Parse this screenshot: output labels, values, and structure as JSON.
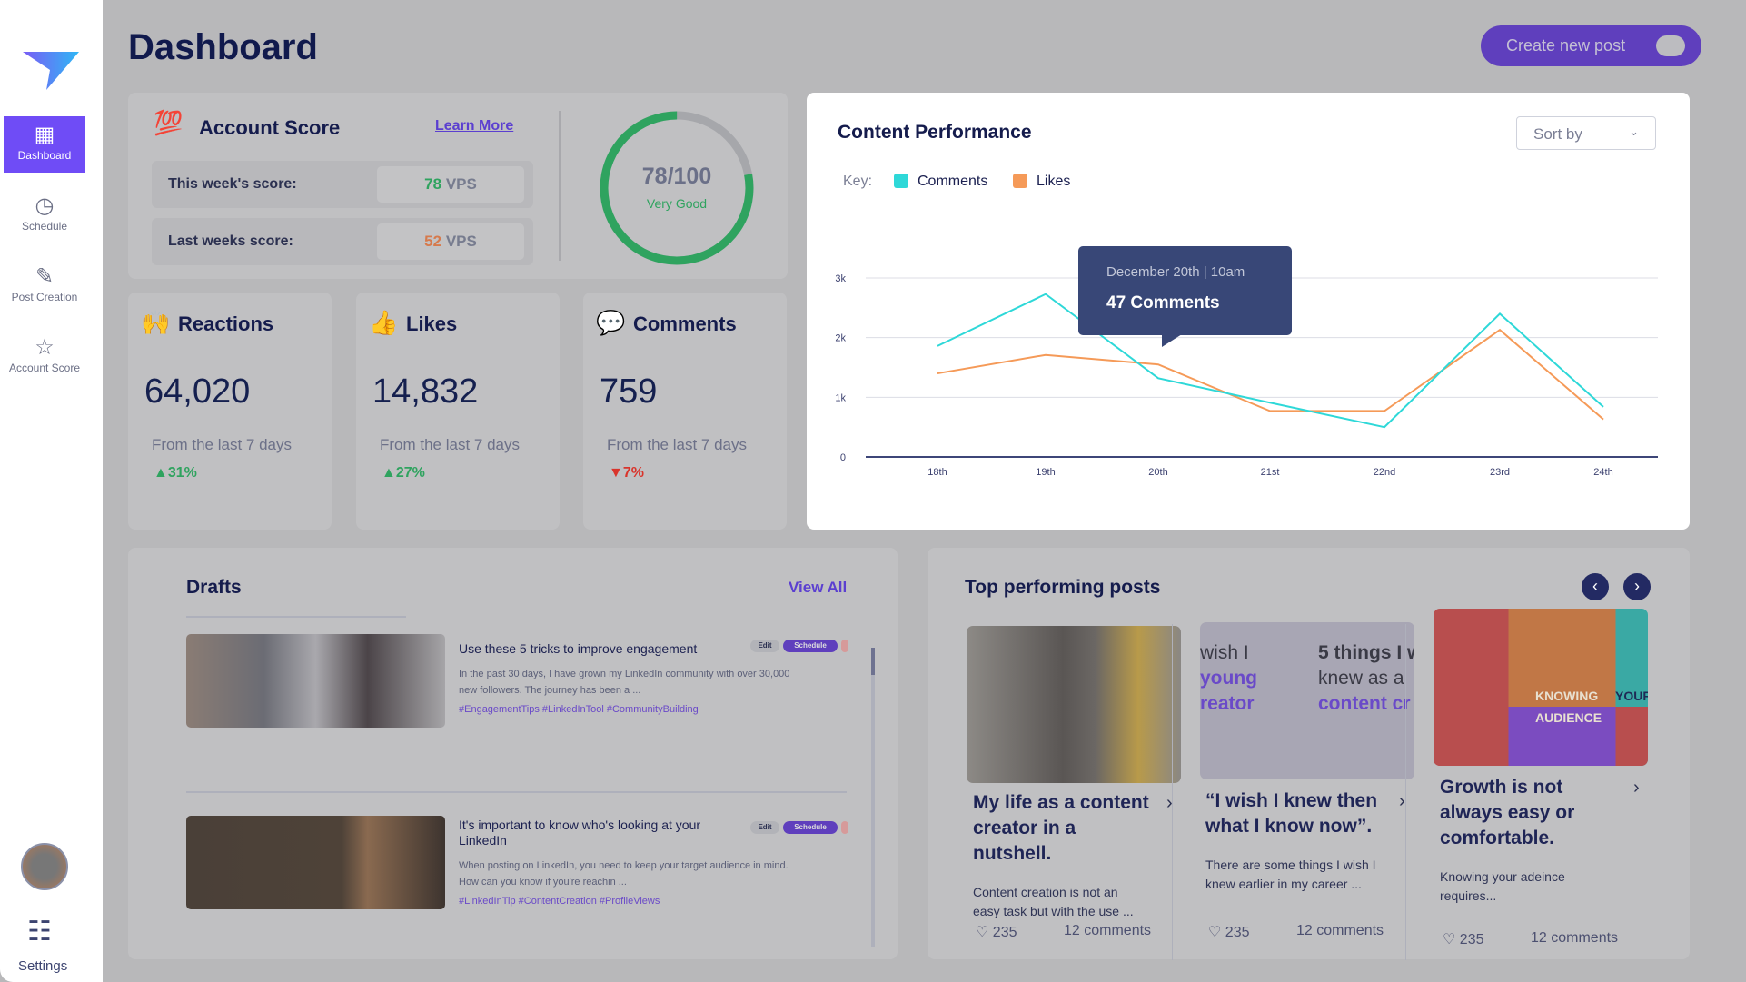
{
  "header": {
    "title": "Dashboard",
    "create_label": "Create new post"
  },
  "sidebar": {
    "items": [
      {
        "label": "Dashboard",
        "icon": "grid-icon"
      },
      {
        "label": "Schedule",
        "icon": "clock-icon"
      },
      {
        "label": "Post Creation",
        "icon": "pencil-icon"
      },
      {
        "label": "Account Score",
        "icon": "star-icon"
      }
    ],
    "settings_label": "Settings"
  },
  "account_score": {
    "title": "Account Score",
    "learn_more": "Learn More",
    "this_week_label": "This week's score:",
    "this_week_value": "78",
    "last_week_label": "Last weeks score:",
    "last_week_value": "52",
    "unit": "VPS",
    "gauge_text": "78/100",
    "gauge_value": 78,
    "gauge_max": 100,
    "gauge_rating": "Very Good"
  },
  "stats": [
    {
      "title": "Reactions",
      "value": "64,020",
      "sub": "From the last 7 days",
      "change": "31%",
      "direction": "up"
    },
    {
      "title": "Likes",
      "value": "14,832",
      "sub": "From the last 7 days",
      "change": "27%",
      "direction": "up"
    },
    {
      "title": "Comments",
      "value": "759",
      "sub": "From the last 7 days",
      "change": "7%",
      "direction": "down"
    }
  ],
  "colors": {
    "accent": "#6f4cf6",
    "up": "#2fa35f",
    "down": "#d9342b",
    "comments": "#2ed8d8",
    "likes": "#f59a58"
  },
  "chart": {
    "title": "Content Performance",
    "sort_label": "Sort by",
    "key_label": "Key:",
    "tooltip_date": "December 20th | 10am",
    "tooltip_value": "47 Comments"
  },
  "chart_data": {
    "type": "line",
    "categories": [
      "18th",
      "19th",
      "20th",
      "21st",
      "22nd",
      "23rd",
      "24th"
    ],
    "y_ticks": [
      "0",
      "1k",
      "2k",
      "3k"
    ],
    "ylim": [
      0,
      3000
    ],
    "grid": true,
    "legend": "top-left",
    "series": [
      {
        "name": "Comments",
        "color": "#2ed8d8",
        "values": [
          1860,
          2730,
          1320,
          910,
          500,
          2400,
          840
        ]
      },
      {
        "name": "Likes",
        "color": "#f59a58",
        "values": [
          1400,
          1710,
          1550,
          770,
          770,
          2130,
          630
        ]
      }
    ]
  },
  "drafts": {
    "title": "Drafts",
    "view_all": "View All",
    "edit_label": "Edit",
    "schedule_label": "Schedule",
    "items": [
      {
        "title": "Use these 5 tricks to improve engagement",
        "body": "In the past 30 days, I have grown my LinkedIn community with over 30,000 new followers. The journey has been a ...",
        "tags": "#EngagementTips #LinkedInTool #CommunityBuilding"
      },
      {
        "title": "It's important to know who's looking at your LinkedIn",
        "body": "When posting on LinkedIn, you need to keep your target audience in mind. How can you know if you're reachin ...",
        "tags": "#LinkedInTip #ContentCreation #ProfileViews"
      }
    ]
  },
  "top_posts": {
    "title": "Top performing posts",
    "items": [
      {
        "title": "My life as a content creator in a nutshell.",
        "body": "Content creation is not an easy task but with the use ...",
        "likes": "235",
        "comments": "12 comments"
      },
      {
        "title": "“I wish I knew then what I know now”.",
        "body": "There are some things I wish I knew earlier in my career ...",
        "likes": "235",
        "comments": "12 comments",
        "image_text": [
          "wish I",
          "young",
          "reator",
          "5 things I w",
          "knew as a",
          "content cr"
        ]
      },
      {
        "title": "Growth is not always easy or comfortable.",
        "body": "Knowing your adeince requires...",
        "likes": "235",
        "comments": "12 comments",
        "image_text": [
          "KNOWING",
          "YOUR",
          "AUDIENCE"
        ]
      }
    ]
  }
}
